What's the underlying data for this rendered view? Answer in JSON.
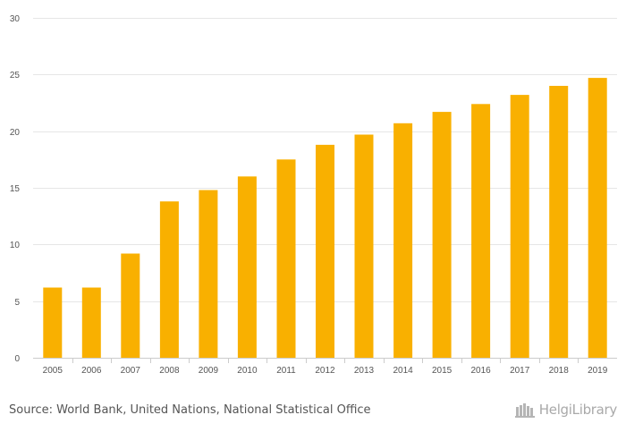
{
  "chart_data": {
    "type": "bar",
    "title": "",
    "xlabel": "",
    "ylabel": "",
    "categories": [
      "2005",
      "2006",
      "2007",
      "2008",
      "2009",
      "2010",
      "2011",
      "2012",
      "2013",
      "2014",
      "2015",
      "2016",
      "2017",
      "2018",
      "2019"
    ],
    "values": [
      6.2,
      6.2,
      9.2,
      13.8,
      14.8,
      16.0,
      17.5,
      18.8,
      19.7,
      20.7,
      21.7,
      22.4,
      23.2,
      24.0,
      24.7
    ],
    "ylim": [
      0,
      30
    ],
    "yticks": [
      "0",
      "5",
      "10",
      "15",
      "20",
      "25",
      "30"
    ],
    "grid": true,
    "bar_color": "#F9B000"
  },
  "footer": {
    "source": "Source: World Bank, United Nations, National Statistical Office",
    "logo_text": "HelgiLibrary",
    "logo_icon": "library-icon"
  }
}
